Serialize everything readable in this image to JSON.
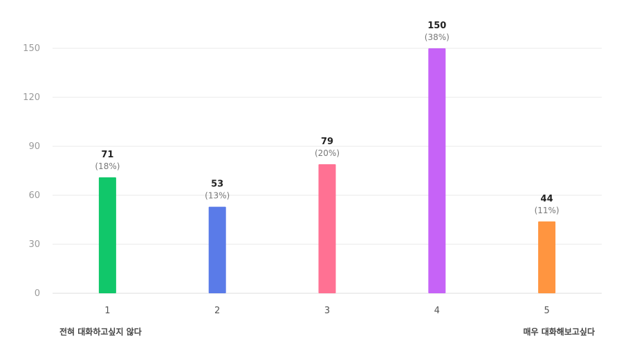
{
  "chart_data": {
    "type": "bar",
    "categories": [
      "1",
      "2",
      "3",
      "4",
      "5"
    ],
    "values": [
      71,
      53,
      79,
      150,
      44
    ],
    "percent_labels": [
      "(18%)",
      "(13%)",
      "(20%)",
      "(38%)",
      "(11%)"
    ],
    "colors": [
      "#11c76a",
      "#5a7be8",
      "#ff7193",
      "#c663f7",
      "#ff9540"
    ],
    "ylim": [
      0,
      150
    ],
    "yticks": [
      0,
      30,
      60,
      90,
      120,
      150
    ],
    "grid": true,
    "legend": "none"
  },
  "scale_labels": {
    "left": "전혀 대화하고싶지 않다",
    "right": "매우 대화해보고싶다"
  }
}
